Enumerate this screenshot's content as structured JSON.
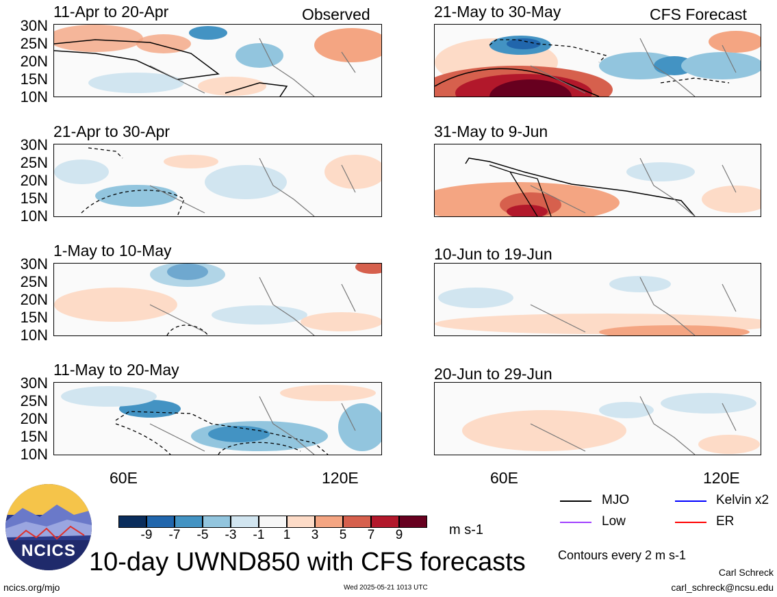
{
  "panels": [
    {
      "title": "11-Apr to 20-Apr",
      "label": "Observed"
    },
    {
      "title": "21-Apr to 30-Apr",
      "label": ""
    },
    {
      "title": "1-May to 10-May",
      "label": ""
    },
    {
      "title": "11-May to 20-May",
      "label": ""
    },
    {
      "title": "21-May to 30-May",
      "label": "CFS Forecast"
    },
    {
      "title": "31-May to 9-Jun",
      "label": ""
    },
    {
      "title": "10-Jun to 19-Jun",
      "label": ""
    },
    {
      "title": "20-Jun to 29-Jun",
      "label": ""
    }
  ],
  "lat_ticks": [
    "30N",
    "25N",
    "20N",
    "15N",
    "10N"
  ],
  "lon_ticks": [
    "60E",
    "120E"
  ],
  "colorbar": {
    "colors": [
      "#0a2d5c",
      "#2166ac",
      "#4393c3",
      "#92c5de",
      "#d1e5f0",
      "#f7f7f7",
      "#fddbc7",
      "#f4a582",
      "#d6604d",
      "#b2182b",
      "#67001f"
    ],
    "labels": [
      "-9",
      "-7",
      "-5",
      "-3",
      "-1",
      "1",
      "3",
      "5",
      "7",
      "9"
    ],
    "units": "m s-1"
  },
  "legend": [
    {
      "name": "MJO",
      "color": "#000000"
    },
    {
      "name": "Kelvin x2",
      "color": "#0000ff"
    },
    {
      "name": "Low",
      "color": "#a040ff"
    },
    {
      "name": "ER",
      "color": "#ff0000"
    }
  ],
  "contour_note": "Contours every 2 m s-1",
  "main_title": "10-day UWND850 with CFS forecasts",
  "logo_text": "NCICS",
  "footer": {
    "url": "ncics.org/mjo",
    "timestamp": "Wed 2025-05-21 1013 UTC",
    "author": "Carl Schreck",
    "email": "carl_schreck@ncsu.edu"
  }
}
